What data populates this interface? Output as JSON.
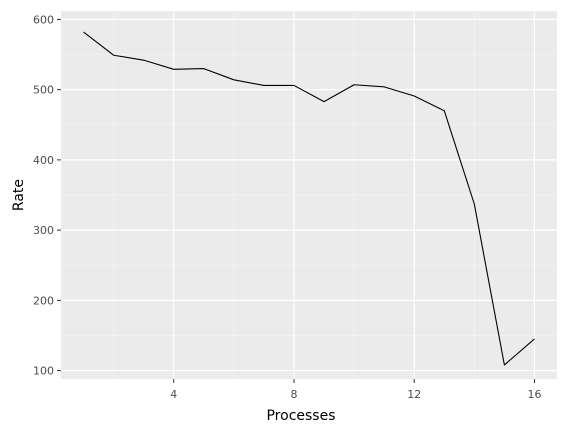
{
  "chart_data": {
    "type": "line",
    "title": "",
    "xlabel": "Processes",
    "ylabel": "Rate",
    "xlim": [
      0.25,
      16.75
    ],
    "ylim": [
      88,
      612
    ],
    "x_ticks": [
      4,
      8,
      12,
      16
    ],
    "x_tick_labels": [
      "4",
      "8",
      "12",
      "16"
    ],
    "x_minor_ticks": [
      2,
      6,
      10,
      14
    ],
    "y_ticks": [
      100,
      200,
      300,
      400,
      500,
      600
    ],
    "y_tick_labels": [
      "100",
      "200",
      "300",
      "400",
      "500",
      "600"
    ],
    "y_minor_ticks": [
      150,
      250,
      350,
      450,
      550
    ],
    "grid": true,
    "legend": "none",
    "colors": {
      "panel_background": "#ebebeb",
      "grid_major": "#ffffff",
      "grid_minor": "#f5f5f5",
      "line": "#000000",
      "tick_text": "#4d4d4d",
      "axis_title_text": "#000000"
    },
    "series": [
      {
        "x": [
          1,
          2,
          3,
          4,
          5,
          6,
          7,
          8,
          9,
          10,
          11,
          12,
          13,
          14,
          15,
          16
        ],
        "y": [
          582,
          549,
          542,
          529,
          530,
          514,
          506,
          506,
          483,
          507,
          504,
          491,
          470,
          337,
          108,
          145
        ]
      }
    ]
  }
}
